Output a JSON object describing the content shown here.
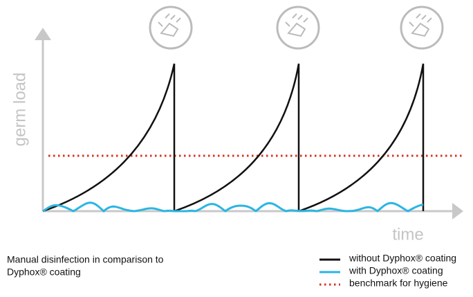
{
  "axes": {
    "y_label": "germ load",
    "x_label": "time"
  },
  "caption": {
    "line1": "Manual disinfection in comparison to",
    "line2": "Dyphox® coating"
  },
  "legend": {
    "items": [
      {
        "label": "without Dyphox® coating"
      },
      {
        "label": "with Dyphox® coating"
      },
      {
        "label": "benchmark for hygiene"
      }
    ]
  }
}
